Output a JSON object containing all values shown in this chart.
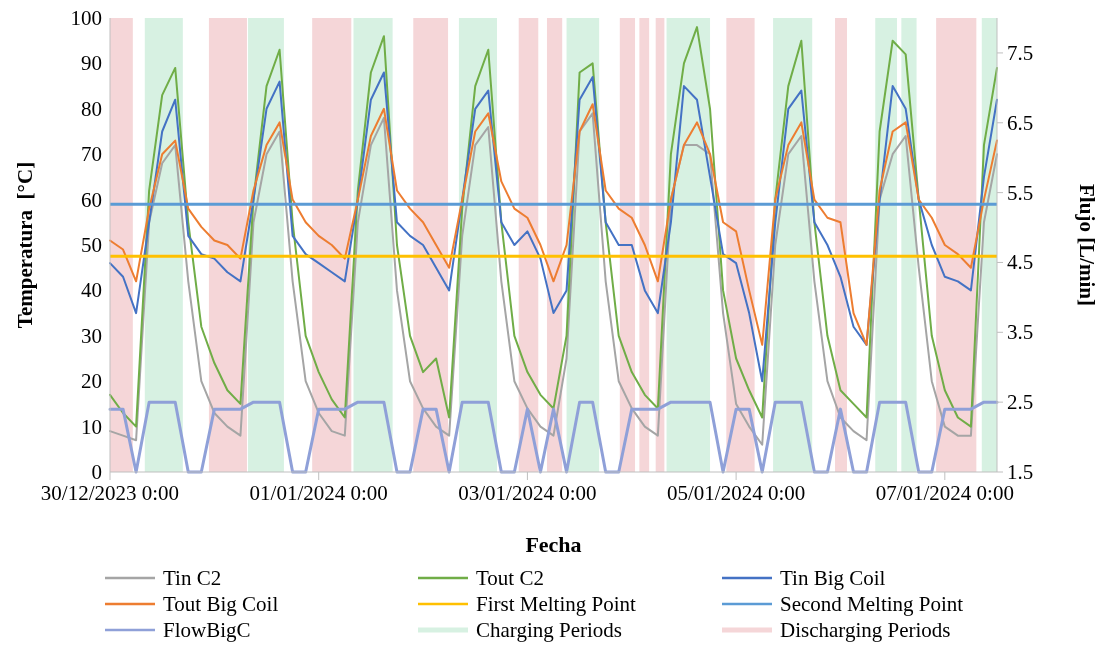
{
  "chart_data": {
    "type": "line",
    "xlabel": "Fecha",
    "ylabel": "Temperatura  [°C]",
    "y2label": "Flujo [L/min]",
    "x": [
      "2023-12-30T00:00",
      "2023-12-30T03:00",
      "2023-12-30T06:00",
      "2023-12-30T09:00",
      "2023-12-30T12:00",
      "2023-12-30T15:00",
      "2023-12-30T18:00",
      "2023-12-30T21:00",
      "2023-12-31T00:00",
      "2023-12-31T03:00",
      "2023-12-31T06:00",
      "2023-12-31T09:00",
      "2023-12-31T12:00",
      "2023-12-31T15:00",
      "2023-12-31T18:00",
      "2023-12-31T21:00",
      "2024-01-01T00:00",
      "2024-01-01T03:00",
      "2024-01-01T06:00",
      "2024-01-01T09:00",
      "2024-01-01T12:00",
      "2024-01-01T15:00",
      "2024-01-01T18:00",
      "2024-01-01T21:00",
      "2024-01-02T00:00",
      "2024-01-02T03:00",
      "2024-01-02T06:00",
      "2024-01-02T09:00",
      "2024-01-02T12:00",
      "2024-01-02T15:00",
      "2024-01-02T18:00",
      "2024-01-02T21:00",
      "2024-01-03T00:00",
      "2024-01-03T03:00",
      "2024-01-03T06:00",
      "2024-01-03T09:00",
      "2024-01-03T12:00",
      "2024-01-03T15:00",
      "2024-01-03T18:00",
      "2024-01-03T21:00",
      "2024-01-04T00:00",
      "2024-01-04T03:00",
      "2024-01-04T06:00",
      "2024-01-04T09:00",
      "2024-01-04T12:00",
      "2024-01-04T15:00",
      "2024-01-04T18:00",
      "2024-01-04T21:00",
      "2024-01-05T00:00",
      "2024-01-05T03:00",
      "2024-01-05T06:00",
      "2024-01-05T09:00",
      "2024-01-05T12:00",
      "2024-01-05T15:00",
      "2024-01-05T18:00",
      "2024-01-05T21:00",
      "2024-01-06T00:00",
      "2024-01-06T03:00",
      "2024-01-06T06:00",
      "2024-01-06T09:00",
      "2024-01-06T12:00",
      "2024-01-06T15:00",
      "2024-01-06T18:00",
      "2024-01-06T21:00",
      "2024-01-07T00:00",
      "2024-01-07T03:00",
      "2024-01-07T06:00",
      "2024-01-07T09:00",
      "2024-01-07T12:00"
    ],
    "series": [
      {
        "name": "Tin C2",
        "color": "#a5a5a5",
        "values": [
          9,
          8,
          7,
          55,
          68,
          72,
          42,
          20,
          13,
          10,
          8,
          55,
          70,
          75,
          42,
          20,
          13,
          9,
          8,
          55,
          72,
          78,
          40,
          20,
          14,
          10,
          8,
          52,
          72,
          76,
          42,
          20,
          14,
          10,
          8,
          25,
          75,
          79,
          42,
          20,
          14,
          10,
          8,
          60,
          72,
          72,
          70,
          35,
          15,
          10,
          6,
          50,
          70,
          74,
          42,
          20,
          12,
          9,
          7,
          60,
          70,
          74,
          45,
          20,
          10,
          8,
          8,
          55,
          70
        ]
      },
      {
        "name": "Tout C2",
        "color": "#70ad47",
        "values": [
          17,
          13,
          10,
          62,
          83,
          89,
          55,
          32,
          24,
          18,
          15,
          60,
          85,
          93,
          55,
          30,
          22,
          16,
          12,
          62,
          88,
          96,
          50,
          30,
          22,
          25,
          12,
          58,
          85,
          93,
          55,
          30,
          22,
          17,
          14,
          30,
          88,
          90,
          55,
          30,
          22,
          17,
          14,
          70,
          90,
          98,
          80,
          40,
          25,
          18,
          12,
          60,
          85,
          95,
          55,
          30,
          18,
          15,
          12,
          75,
          95,
          92,
          60,
          30,
          18,
          12,
          10,
          72,
          89
        ]
      },
      {
        "name": "Tin Big Coil",
        "color": "#4472c4",
        "values": [
          46,
          43,
          35,
          55,
          75,
          82,
          52,
          48,
          47,
          44,
          42,
          60,
          80,
          86,
          52,
          48,
          46,
          44,
          42,
          60,
          82,
          88,
          55,
          52,
          50,
          45,
          40,
          60,
          80,
          84,
          55,
          50,
          53,
          47,
          35,
          40,
          82,
          87,
          55,
          50,
          50,
          40,
          35,
          55,
          85,
          82,
          65,
          48,
          46,
          35,
          20,
          55,
          80,
          84,
          55,
          50,
          43,
          32,
          28,
          60,
          85,
          80,
          60,
          50,
          43,
          42,
          40,
          65,
          82
        ]
      },
      {
        "name": "Tout Big Coil",
        "color": "#ed7d31",
        "values": [
          51,
          49,
          42,
          58,
          70,
          73,
          58,
          54,
          51,
          50,
          47,
          62,
          72,
          77,
          60,
          55,
          52,
          50,
          47,
          60,
          74,
          80,
          62,
          58,
          55,
          50,
          45,
          60,
          75,
          79,
          64,
          58,
          56,
          50,
          42,
          50,
          75,
          81,
          62,
          58,
          56,
          50,
          42,
          60,
          72,
          77,
          70,
          55,
          53,
          40,
          28,
          60,
          72,
          77,
          60,
          56,
          55,
          35,
          28,
          62,
          75,
          77,
          60,
          56,
          50,
          48,
          45,
          60,
          73
        ]
      },
      {
        "name": "FlowBigC",
        "color": "#8fa0d8",
        "axis": "y2",
        "values": [
          2.4,
          2.4,
          1.5,
          2.5,
          2.5,
          2.5,
          1.5,
          1.5,
          2.4,
          2.4,
          2.4,
          2.5,
          2.5,
          2.5,
          1.5,
          1.5,
          2.4,
          2.4,
          2.4,
          2.5,
          2.5,
          2.5,
          1.5,
          1.5,
          2.4,
          2.4,
          1.5,
          2.5,
          2.5,
          2.5,
          1.5,
          1.5,
          2.4,
          1.5,
          2.4,
          1.5,
          2.5,
          2.5,
          1.5,
          1.5,
          2.4,
          2.4,
          2.4,
          2.5,
          2.5,
          2.5,
          2.5,
          1.5,
          2.4,
          2.4,
          1.5,
          2.5,
          2.5,
          2.5,
          1.5,
          1.5,
          2.4,
          1.5,
          1.5,
          2.5,
          2.5,
          2.5,
          1.5,
          1.5,
          2.4,
          2.4,
          2.4,
          2.5,
          2.5
        ]
      }
    ],
    "ref_lines": [
      {
        "axis": "y",
        "value": 47.5,
        "label": "First Melting Point",
        "color": "#ffc000"
      },
      {
        "axis": "y",
        "value": 59,
        "label": "Second Melting Point",
        "color": "#5b9bd5"
      }
    ],
    "bands": [
      {
        "axis": "x",
        "from": "2023-12-30T08:00",
        "to": "2023-12-30T16:45",
        "label": "Charging Periods",
        "color": "#d7f1e2"
      },
      {
        "axis": "x",
        "from": "2023-12-30T00:00",
        "to": "2023-12-30T05:15",
        "label": "Discharging Periods",
        "color": "#f5d6d8"
      },
      {
        "axis": "x",
        "from": "2023-12-31T07:45",
        "to": "2023-12-31T16:00",
        "color": "#d7f1e2"
      },
      {
        "axis": "x",
        "from": "2024-01-01T08:00",
        "to": "2024-01-01T17:00",
        "color": "#d7f1e2"
      },
      {
        "axis": "x",
        "from": "2024-01-02T08:15",
        "to": "2024-01-02T17:00",
        "color": "#d7f1e2"
      },
      {
        "axis": "x",
        "from": "2024-01-03T09:00",
        "to": "2024-01-03T16:30",
        "color": "#d7f1e2"
      },
      {
        "axis": "x",
        "from": "2024-01-04T08:00",
        "to": "2024-01-04T18:00",
        "color": "#d7f1e2"
      },
      {
        "axis": "x",
        "from": "2024-01-05T08:30",
        "to": "2024-01-05T17:30",
        "color": "#d7f1e2"
      },
      {
        "axis": "x",
        "from": "2024-01-06T08:00",
        "to": "2024-01-06T13:00",
        "color": "#d7f1e2"
      },
      {
        "axis": "x",
        "from": "2024-01-06T14:00",
        "to": "2024-01-06T17:30",
        "color": "#d7f1e2"
      },
      {
        "axis": "x",
        "from": "2024-01-07T08:30",
        "to": "2024-01-07T12:00",
        "color": "#d7f1e2"
      },
      {
        "axis": "x",
        "from": "2023-12-30T22:45",
        "to": "2023-12-31T07:30",
        "color": "#f5d6d8"
      },
      {
        "axis": "x",
        "from": "2023-12-31T22:30",
        "to": "2024-01-01T07:30",
        "color": "#f5d6d8"
      },
      {
        "axis": "x",
        "from": "2024-01-01T21:45",
        "to": "2024-01-02T05:45",
        "color": "#f5d6d8"
      },
      {
        "axis": "x",
        "from": "2024-01-02T22:00",
        "to": "2024-01-03T02:30",
        "color": "#f5d6d8"
      },
      {
        "axis": "x",
        "from": "2024-01-03T04:30",
        "to": "2024-01-03T08:00",
        "color": "#f5d6d8"
      },
      {
        "axis": "x",
        "from": "2024-01-03T21:15",
        "to": "2024-01-04T00:45",
        "color": "#f5d6d8"
      },
      {
        "axis": "x",
        "from": "2024-01-04T01:45",
        "to": "2024-01-04T04:00",
        "color": "#f5d6d8"
      },
      {
        "axis": "x",
        "from": "2024-01-04T05:30",
        "to": "2024-01-04T07:30",
        "color": "#f5d6d8"
      },
      {
        "axis": "x",
        "from": "2024-01-04T21:45",
        "to": "2024-01-05T04:15",
        "color": "#f5d6d8"
      },
      {
        "axis": "x",
        "from": "2024-01-05T22:45",
        "to": "2024-01-06T01:30",
        "color": "#f5d6d8"
      },
      {
        "axis": "x",
        "from": "2024-01-06T22:00",
        "to": "2024-01-07T07:15",
        "color": "#f5d6d8"
      }
    ],
    "xlim": [
      "2023-12-30T00:00",
      "2024-01-07T12:00"
    ],
    "xticks": [
      {
        "value": "2023-12-30T00:00",
        "label": "30/12/2023 0:00"
      },
      {
        "value": "2024-01-01T00:00",
        "label": "01/01/2024 0:00"
      },
      {
        "value": "2024-01-03T00:00",
        "label": "03/01/2024 0:00"
      },
      {
        "value": "2024-01-05T00:00",
        "label": "05/01/2024 0:00"
      },
      {
        "value": "2024-01-07T00:00",
        "label": "07/01/2024 0:00"
      }
    ],
    "ylim": [
      0,
      100
    ],
    "yticks": [
      0,
      10,
      20,
      30,
      40,
      50,
      60,
      70,
      80,
      90,
      100
    ],
    "y2lim": [
      1.5,
      8
    ],
    "y2ticks": [
      1.5,
      2.5,
      3.5,
      4.5,
      5.5,
      6.5,
      7.5
    ],
    "legend": "bottom",
    "grid": false
  }
}
